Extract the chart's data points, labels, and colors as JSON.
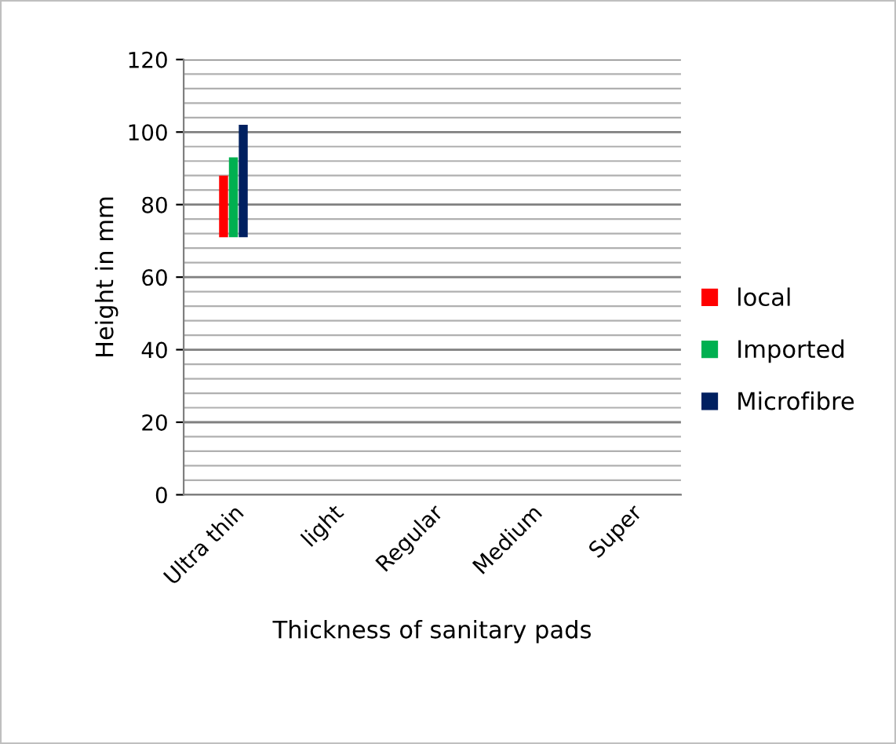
{
  "chart_data": {
    "type": "bar",
    "xlabel": "Thickness of sanitary pads",
    "ylabel": "Height in mm",
    "categories": [
      "Ultra thin",
      "light",
      "Regular",
      "Medium",
      "Super"
    ],
    "series": [
      {
        "name": "local",
        "color": "#ff0000",
        "base": [
          71,
          null,
          null,
          null,
          null
        ],
        "values": [
          17,
          null,
          null,
          null,
          null
        ]
      },
      {
        "name": "Imported",
        "color": "#00b050",
        "base": [
          71,
          null,
          null,
          null,
          null
        ],
        "values": [
          22,
          null,
          null,
          null,
          null
        ]
      },
      {
        "name": "Microfibre",
        "color": "#002060",
        "base": [
          71,
          null,
          null,
          null,
          null
        ],
        "values": [
          31,
          null,
          null,
          null,
          null
        ]
      }
    ],
    "ylim": [
      0,
      120
    ],
    "yticks": [
      0,
      {
        "value": 4,
        "label": null
      },
      {
        "value": 8,
        "label": null
      },
      {
        "value": 12,
        "label": null
      },
      {
        "value": 16,
        "label": null
      },
      20,
      {
        "value": 24,
        "label": null
      },
      {
        "value": 28,
        "label": null
      },
      {
        "value": 32,
        "label": null
      },
      {
        "value": 36,
        "label": null
      },
      40,
      {
        "value": 44,
        "label": null
      },
      {
        "value": 48,
        "label": null
      },
      {
        "value": 52,
        "label": null
      },
      {
        "value": 56,
        "label": null
      },
      60,
      {
        "value": 64,
        "label": null
      },
      {
        "value": 68,
        "label": null
      },
      {
        "value": 72,
        "label": null
      },
      {
        "value": 76,
        "label": null
      },
      80,
      {
        "value": 84,
        "label": null
      },
      {
        "value": 88,
        "label": null
      },
      {
        "value": 92,
        "label": null
      },
      {
        "value": 96,
        "label": null
      },
      100,
      {
        "value": 104,
        "label": null
      },
      {
        "value": 108,
        "label": null
      },
      {
        "value": 112,
        "label": null
      },
      {
        "value": 116,
        "label": null
      },
      120
    ],
    "grid": "y",
    "legend": "right"
  }
}
